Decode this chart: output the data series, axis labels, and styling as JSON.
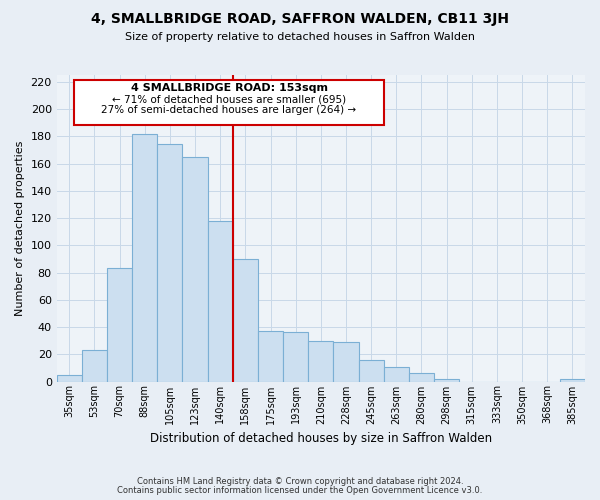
{
  "title": "4, SMALLBRIDGE ROAD, SAFFRON WALDEN, CB11 3JH",
  "subtitle": "Size of property relative to detached houses in Saffron Walden",
  "xlabel": "Distribution of detached houses by size in Saffron Walden",
  "ylabel": "Number of detached properties",
  "categories": [
    "35sqm",
    "53sqm",
    "70sqm",
    "88sqm",
    "105sqm",
    "123sqm",
    "140sqm",
    "158sqm",
    "175sqm",
    "193sqm",
    "210sqm",
    "228sqm",
    "245sqm",
    "263sqm",
    "280sqm",
    "298sqm",
    "315sqm",
    "333sqm",
    "350sqm",
    "368sqm",
    "385sqm"
  ],
  "values": [
    5,
    23,
    83,
    182,
    174,
    165,
    118,
    90,
    37,
    36,
    30,
    29,
    16,
    11,
    6,
    2,
    0,
    0,
    0,
    0,
    2
  ],
  "bar_color": "#ccdff0",
  "bar_edge_color": "#7bafd4",
  "vline_color": "#cc0000",
  "annotation_title": "4 SMALLBRIDGE ROAD: 153sqm",
  "annotation_line1": "← 71% of detached houses are smaller (695)",
  "annotation_line2": "27% of semi-detached houses are larger (264) →",
  "annotation_box_color": "#ffffff",
  "annotation_box_edge": "#cc0000",
  "ylim": [
    0,
    225
  ],
  "yticks": [
    0,
    20,
    40,
    60,
    80,
    100,
    120,
    140,
    160,
    180,
    200,
    220
  ],
  "footer1": "Contains HM Land Registry data © Crown copyright and database right 2024.",
  "footer2": "Contains public sector information licensed under the Open Government Licence v3.0.",
  "bg_color": "#e8eef5",
  "plot_bg_color": "#eef3f8",
  "grid_color": "#c8d8e8"
}
